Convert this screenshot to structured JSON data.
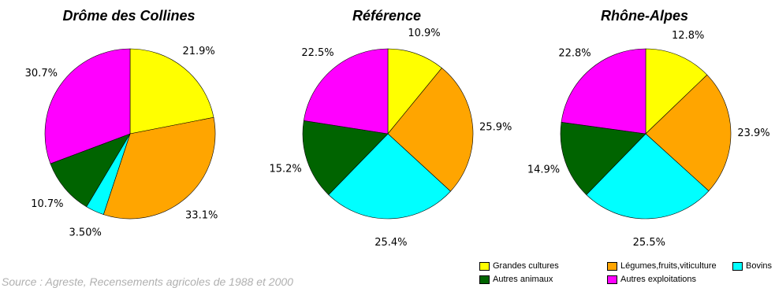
{
  "legend": {
    "items": [
      {
        "label": "Grandes cultures",
        "color": "#ffff00"
      },
      {
        "label": "Légumes,fruits,viticulture",
        "color": "#ffa500"
      },
      {
        "label": "Bovins",
        "color": "#00ffff"
      },
      {
        "label": "Autres animaux",
        "color": "#006400"
      },
      {
        "label": "Autres exploitations",
        "color": "#ff00ff"
      }
    ]
  },
  "source_text": "Source : Agreste, Recensements agricoles de 1988 et 2000",
  "chart_data": [
    {
      "type": "pie",
      "title": "Drôme des Collines",
      "categories": [
        "Grandes cultures",
        "Légumes,fruits,viticulture",
        "Bovins",
        "Autres animaux",
        "Autres exploitations"
      ],
      "values": [
        21.9,
        33.1,
        3.5,
        10.7,
        30.7
      ],
      "labels": [
        "21.9%",
        "33.1%",
        "3.50%",
        "10.7%",
        "30.7%"
      ],
      "colors": [
        "#ffff00",
        "#ffa500",
        "#00ffff",
        "#006400",
        "#ff00ff"
      ]
    },
    {
      "type": "pie",
      "title": "Référence",
      "categories": [
        "Grandes cultures",
        "Légumes,fruits,viticulture",
        "Bovins",
        "Autres animaux",
        "Autres exploitations"
      ],
      "values": [
        10.9,
        25.9,
        25.4,
        15.2,
        22.5
      ],
      "labels": [
        "10.9%",
        "25.9%",
        "25.4%",
        "15.2%",
        "22.5%"
      ],
      "colors": [
        "#ffff00",
        "#ffa500",
        "#00ffff",
        "#006400",
        "#ff00ff"
      ]
    },
    {
      "type": "pie",
      "title": "Rhône-Alpes",
      "categories": [
        "Grandes cultures",
        "Légumes,fruits,viticulture",
        "Bovins",
        "Autres animaux",
        "Autres exploitations"
      ],
      "values": [
        12.8,
        23.9,
        25.5,
        14.9,
        22.8
      ],
      "labels": [
        "12.8%",
        "23.9%",
        "25.5%",
        "14.9%",
        "22.8%"
      ],
      "colors": [
        "#ffff00",
        "#ffa500",
        "#00ffff",
        "#006400",
        "#ff00ff"
      ]
    }
  ]
}
